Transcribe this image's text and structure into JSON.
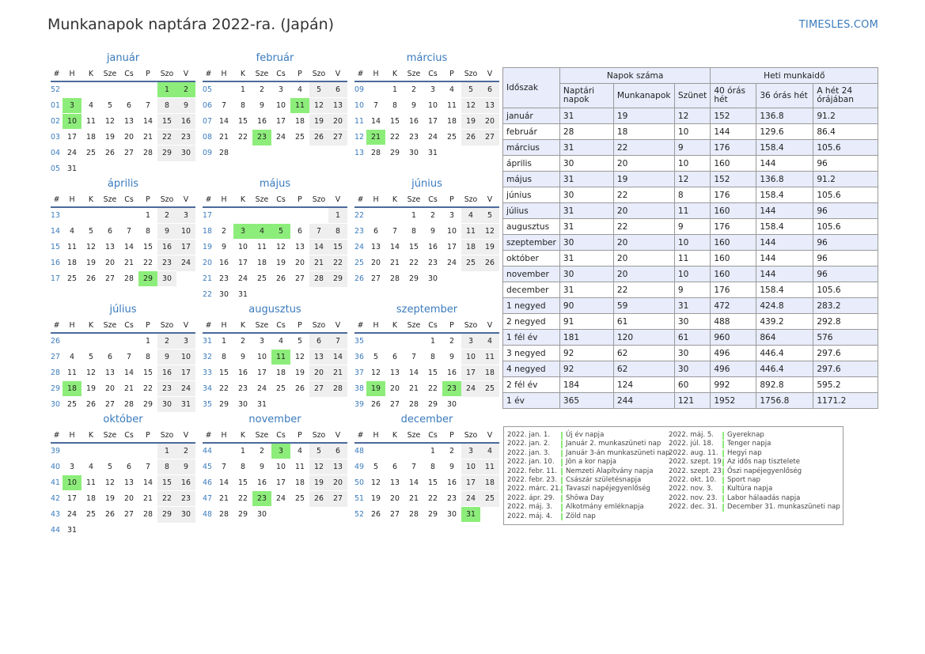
{
  "title": "Munkanapok naptára 2022-ra. (Japán)",
  "brand": "TIMESLES.COM",
  "colors": {
    "accent": "#3a7bbd",
    "holiday": "#8ded7a",
    "weekend": "#efefef",
    "header_row": "#e8ecfb"
  },
  "day_headers": [
    "#",
    "H",
    "K",
    "Sze",
    "Cs",
    "P",
    "Szo",
    "V"
  ],
  "months": [
    {
      "name": "január",
      "weeks": [
        {
          "w": "52",
          "d": [
            "",
            "",
            "",
            "",
            "",
            "1",
            "2"
          ]
        },
        {
          "w": "01",
          "d": [
            "3",
            "4",
            "5",
            "6",
            "7",
            "8",
            "9"
          ]
        },
        {
          "w": "02",
          "d": [
            "10",
            "11",
            "12",
            "13",
            "14",
            "15",
            "16"
          ]
        },
        {
          "w": "03",
          "d": [
            "17",
            "18",
            "19",
            "20",
            "21",
            "22",
            "23"
          ]
        },
        {
          "w": "04",
          "d": [
            "24",
            "25",
            "26",
            "27",
            "28",
            "29",
            "30"
          ]
        },
        {
          "w": "05",
          "d": [
            "31",
            "",
            "",
            "",
            "",
            "",
            ""
          ]
        }
      ],
      "holidays": [
        "1",
        "2",
        "3",
        "10"
      ]
    },
    {
      "name": "február",
      "weeks": [
        {
          "w": "05",
          "d": [
            "",
            "1",
            "2",
            "3",
            "4",
            "5",
            "6"
          ]
        },
        {
          "w": "06",
          "d": [
            "7",
            "8",
            "9",
            "10",
            "11",
            "12",
            "13"
          ]
        },
        {
          "w": "07",
          "d": [
            "14",
            "15",
            "16",
            "17",
            "18",
            "19",
            "20"
          ]
        },
        {
          "w": "08",
          "d": [
            "21",
            "22",
            "23",
            "24",
            "25",
            "26",
            "27"
          ]
        },
        {
          "w": "09",
          "d": [
            "28",
            "",
            "",
            "",
            "",
            "",
            ""
          ]
        }
      ],
      "holidays": [
        "11",
        "23"
      ]
    },
    {
      "name": "március",
      "weeks": [
        {
          "w": "09",
          "d": [
            "",
            "1",
            "2",
            "3",
            "4",
            "5",
            "6"
          ]
        },
        {
          "w": "10",
          "d": [
            "7",
            "8",
            "9",
            "10",
            "11",
            "12",
            "13"
          ]
        },
        {
          "w": "11",
          "d": [
            "14",
            "15",
            "16",
            "17",
            "18",
            "19",
            "20"
          ]
        },
        {
          "w": "12",
          "d": [
            "21",
            "22",
            "23",
            "24",
            "25",
            "26",
            "27"
          ]
        },
        {
          "w": "13",
          "d": [
            "28",
            "29",
            "30",
            "31",
            "",
            "",
            ""
          ]
        }
      ],
      "holidays": [
        "21"
      ]
    },
    {
      "name": "április",
      "weeks": [
        {
          "w": "13",
          "d": [
            "",
            "",
            "",
            "",
            "1",
            "2",
            "3"
          ]
        },
        {
          "w": "14",
          "d": [
            "4",
            "5",
            "6",
            "7",
            "8",
            "9",
            "10"
          ]
        },
        {
          "w": "15",
          "d": [
            "11",
            "12",
            "13",
            "14",
            "15",
            "16",
            "17"
          ]
        },
        {
          "w": "16",
          "d": [
            "18",
            "19",
            "20",
            "21",
            "22",
            "23",
            "24"
          ]
        },
        {
          "w": "17",
          "d": [
            "25",
            "26",
            "27",
            "28",
            "29",
            "30",
            ""
          ]
        }
      ],
      "holidays": [
        "29"
      ]
    },
    {
      "name": "május",
      "weeks": [
        {
          "w": "17",
          "d": [
            "",
            "",
            "",
            "",
            "",
            "",
            "1"
          ]
        },
        {
          "w": "18",
          "d": [
            "2",
            "3",
            "4",
            "5",
            "6",
            "7",
            "8"
          ]
        },
        {
          "w": "19",
          "d": [
            "9",
            "10",
            "11",
            "12",
            "13",
            "14",
            "15"
          ]
        },
        {
          "w": "20",
          "d": [
            "16",
            "17",
            "18",
            "19",
            "20",
            "21",
            "22"
          ]
        },
        {
          "w": "21",
          "d": [
            "23",
            "24",
            "25",
            "26",
            "27",
            "28",
            "29"
          ]
        },
        {
          "w": "22",
          "d": [
            "30",
            "31",
            "",
            "",
            "",
            "",
            ""
          ]
        }
      ],
      "holidays": [
        "3",
        "4",
        "5"
      ]
    },
    {
      "name": "június",
      "weeks": [
        {
          "w": "22",
          "d": [
            "",
            "",
            "1",
            "2",
            "3",
            "4",
            "5"
          ]
        },
        {
          "w": "23",
          "d": [
            "6",
            "7",
            "8",
            "9",
            "10",
            "11",
            "12"
          ]
        },
        {
          "w": "24",
          "d": [
            "13",
            "14",
            "15",
            "16",
            "17",
            "18",
            "19"
          ]
        },
        {
          "w": "25",
          "d": [
            "20",
            "21",
            "22",
            "23",
            "24",
            "25",
            "26"
          ]
        },
        {
          "w": "26",
          "d": [
            "27",
            "28",
            "29",
            "30",
            "",
            "",
            ""
          ]
        }
      ],
      "holidays": []
    },
    {
      "name": "július",
      "weeks": [
        {
          "w": "26",
          "d": [
            "",
            "",
            "",
            "",
            "1",
            "2",
            "3"
          ]
        },
        {
          "w": "27",
          "d": [
            "4",
            "5",
            "6",
            "7",
            "8",
            "9",
            "10"
          ]
        },
        {
          "w": "28",
          "d": [
            "11",
            "12",
            "13",
            "14",
            "15",
            "16",
            "17"
          ]
        },
        {
          "w": "29",
          "d": [
            "18",
            "19",
            "20",
            "21",
            "22",
            "23",
            "24"
          ]
        },
        {
          "w": "30",
          "d": [
            "25",
            "26",
            "27",
            "28",
            "29",
            "30",
            "31"
          ]
        }
      ],
      "holidays": [
        "18"
      ]
    },
    {
      "name": "augusztus",
      "weeks": [
        {
          "w": "31",
          "d": [
            "1",
            "2",
            "3",
            "4",
            "5",
            "6",
            "7"
          ]
        },
        {
          "w": "32",
          "d": [
            "8",
            "9",
            "10",
            "11",
            "12",
            "13",
            "14"
          ]
        },
        {
          "w": "33",
          "d": [
            "15",
            "16",
            "17",
            "18",
            "19",
            "20",
            "21"
          ]
        },
        {
          "w": "34",
          "d": [
            "22",
            "23",
            "24",
            "25",
            "26",
            "27",
            "28"
          ]
        },
        {
          "w": "35",
          "d": [
            "29",
            "30",
            "31",
            "",
            "",
            "",
            ""
          ]
        }
      ],
      "holidays": [
        "11"
      ]
    },
    {
      "name": "szeptember",
      "weeks": [
        {
          "w": "35",
          "d": [
            "",
            "",
            "",
            "1",
            "2",
            "3",
            "4"
          ]
        },
        {
          "w": "36",
          "d": [
            "5",
            "6",
            "7",
            "8",
            "9",
            "10",
            "11"
          ]
        },
        {
          "w": "37",
          "d": [
            "12",
            "13",
            "14",
            "15",
            "16",
            "17",
            "18"
          ]
        },
        {
          "w": "38",
          "d": [
            "19",
            "20",
            "21",
            "22",
            "23",
            "24",
            "25"
          ]
        },
        {
          "w": "39",
          "d": [
            "26",
            "27",
            "28",
            "29",
            "30",
            "",
            ""
          ]
        }
      ],
      "holidays": [
        "19",
        "23"
      ]
    },
    {
      "name": "október",
      "weeks": [
        {
          "w": "39",
          "d": [
            "",
            "",
            "",
            "",
            "",
            "1",
            "2"
          ]
        },
        {
          "w": "40",
          "d": [
            "3",
            "4",
            "5",
            "6",
            "7",
            "8",
            "9"
          ]
        },
        {
          "w": "41",
          "d": [
            "10",
            "11",
            "12",
            "13",
            "14",
            "15",
            "16"
          ]
        },
        {
          "w": "42",
          "d": [
            "17",
            "18",
            "19",
            "20",
            "21",
            "22",
            "23"
          ]
        },
        {
          "w": "43",
          "d": [
            "24",
            "25",
            "26",
            "27",
            "28",
            "29",
            "30"
          ]
        },
        {
          "w": "44",
          "d": [
            "31",
            "",
            "",
            "",
            "",
            "",
            ""
          ]
        }
      ],
      "holidays": [
        "10"
      ]
    },
    {
      "name": "november",
      "weeks": [
        {
          "w": "44",
          "d": [
            "",
            "1",
            "2",
            "3",
            "4",
            "5",
            "6"
          ]
        },
        {
          "w": "45",
          "d": [
            "7",
            "8",
            "9",
            "10",
            "11",
            "12",
            "13"
          ]
        },
        {
          "w": "46",
          "d": [
            "14",
            "15",
            "16",
            "17",
            "18",
            "19",
            "20"
          ]
        },
        {
          "w": "47",
          "d": [
            "21",
            "22",
            "23",
            "24",
            "25",
            "26",
            "27"
          ]
        },
        {
          "w": "48",
          "d": [
            "28",
            "29",
            "30",
            "",
            "",
            "",
            ""
          ]
        }
      ],
      "holidays": [
        "3",
        "23"
      ]
    },
    {
      "name": "december",
      "weeks": [
        {
          "w": "48",
          "d": [
            "",
            "",
            "",
            "1",
            "2",
            "3",
            "4"
          ]
        },
        {
          "w": "49",
          "d": [
            "5",
            "6",
            "7",
            "8",
            "9",
            "10",
            "11"
          ]
        },
        {
          "w": "50",
          "d": [
            "12",
            "13",
            "14",
            "15",
            "16",
            "17",
            "18"
          ]
        },
        {
          "w": "51",
          "d": [
            "19",
            "20",
            "21",
            "22",
            "23",
            "24",
            "25"
          ]
        },
        {
          "w": "52",
          "d": [
            "26",
            "27",
            "28",
            "29",
            "30",
            "31",
            ""
          ]
        }
      ],
      "holidays": [
        "31"
      ]
    }
  ],
  "summary": {
    "headers": {
      "period": "Időszak",
      "days_count": "Napok száma",
      "weekly_hours": "Heti munkaidő",
      "calendar_days": "Naptári napok",
      "workdays": "Munkanapok",
      "holidays": "Szünet",
      "h40": "40 órás hét",
      "h36": "36 órás hét",
      "h24": "A hét 24 órájában"
    },
    "rows": [
      [
        "január",
        "31",
        "19",
        "12",
        "152",
        "136.8",
        "91.2"
      ],
      [
        "február",
        "28",
        "18",
        "10",
        "144",
        "129.6",
        "86.4"
      ],
      [
        "március",
        "31",
        "22",
        "9",
        "176",
        "158.4",
        "105.6"
      ],
      [
        "április",
        "30",
        "20",
        "10",
        "160",
        "144",
        "96"
      ],
      [
        "május",
        "31",
        "19",
        "12",
        "152",
        "136.8",
        "91.2"
      ],
      [
        "június",
        "30",
        "22",
        "8",
        "176",
        "158.4",
        "105.6"
      ],
      [
        "július",
        "31",
        "20",
        "11",
        "160",
        "144",
        "96"
      ],
      [
        "augusztus",
        "31",
        "22",
        "9",
        "176",
        "158.4",
        "105.6"
      ],
      [
        "szeptember",
        "30",
        "20",
        "10",
        "160",
        "144",
        "96"
      ],
      [
        "október",
        "31",
        "20",
        "11",
        "160",
        "144",
        "96"
      ],
      [
        "november",
        "30",
        "20",
        "10",
        "160",
        "144",
        "96"
      ],
      [
        "december",
        "31",
        "22",
        "9",
        "176",
        "158.4",
        "105.6"
      ],
      [
        "1 negyed",
        "90",
        "59",
        "31",
        "472",
        "424.8",
        "283.2"
      ],
      [
        "2 negyed",
        "91",
        "61",
        "30",
        "488",
        "439.2",
        "292.8"
      ],
      [
        "1 fél év",
        "181",
        "120",
        "61",
        "960",
        "864",
        "576"
      ],
      [
        "3 negyed",
        "92",
        "62",
        "30",
        "496",
        "446.4",
        "297.6"
      ],
      [
        "4 negyed",
        "92",
        "62",
        "30",
        "496",
        "446.4",
        "297.6"
      ],
      [
        "2 fél év",
        "184",
        "124",
        "60",
        "992",
        "892.8",
        "595.2"
      ],
      [
        "1 év",
        "365",
        "244",
        "121",
        "1952",
        "1756.8",
        "1171.2"
      ]
    ]
  },
  "holidays_list": [
    [
      {
        "date": "2022. jan. 1.",
        "name": "Új év napja"
      },
      {
        "date": "2022. jan. 2.",
        "name": "Január 2. munkaszüneti nap"
      },
      {
        "date": "2022. jan. 3.",
        "name": "Január 3-án munkaszüneti nap"
      },
      {
        "date": "2022. jan. 10.",
        "name": "Jön a kor napja"
      },
      {
        "date": "2022. febr. 11.",
        "name": "Nemzeti Alapítvány napja"
      },
      {
        "date": "2022. febr. 23.",
        "name": "Császár születésnapja"
      },
      {
        "date": "2022. márc. 21.",
        "name": "Tavaszi napéjegyenlőség"
      },
      {
        "date": "2022. ápr. 29.",
        "name": "Shōwa Day"
      },
      {
        "date": "2022. máj. 3.",
        "name": "Alkotmány emléknapja"
      },
      {
        "date": "2022. máj. 4.",
        "name": "Zöld nap"
      }
    ],
    [
      {
        "date": "2022. máj. 5.",
        "name": "Gyereknap"
      },
      {
        "date": "2022. júl. 18.",
        "name": "Tenger napja"
      },
      {
        "date": "2022. aug. 11.",
        "name": "Hegyi nap"
      },
      {
        "date": "2022. szept. 19.",
        "name": "Az idős nap tisztelete"
      },
      {
        "date": "2022. szept. 23.",
        "name": "Őszi napéjegyenlőség"
      },
      {
        "date": "2022. okt. 10.",
        "name": "Sport nap"
      },
      {
        "date": "2022. nov. 3.",
        "name": "Kultúra napja"
      },
      {
        "date": "2022. nov. 23.",
        "name": "Labor hálaadás napja"
      },
      {
        "date": "2022. dec. 31.",
        "name": "December 31. munkaszüneti nap"
      }
    ]
  ]
}
